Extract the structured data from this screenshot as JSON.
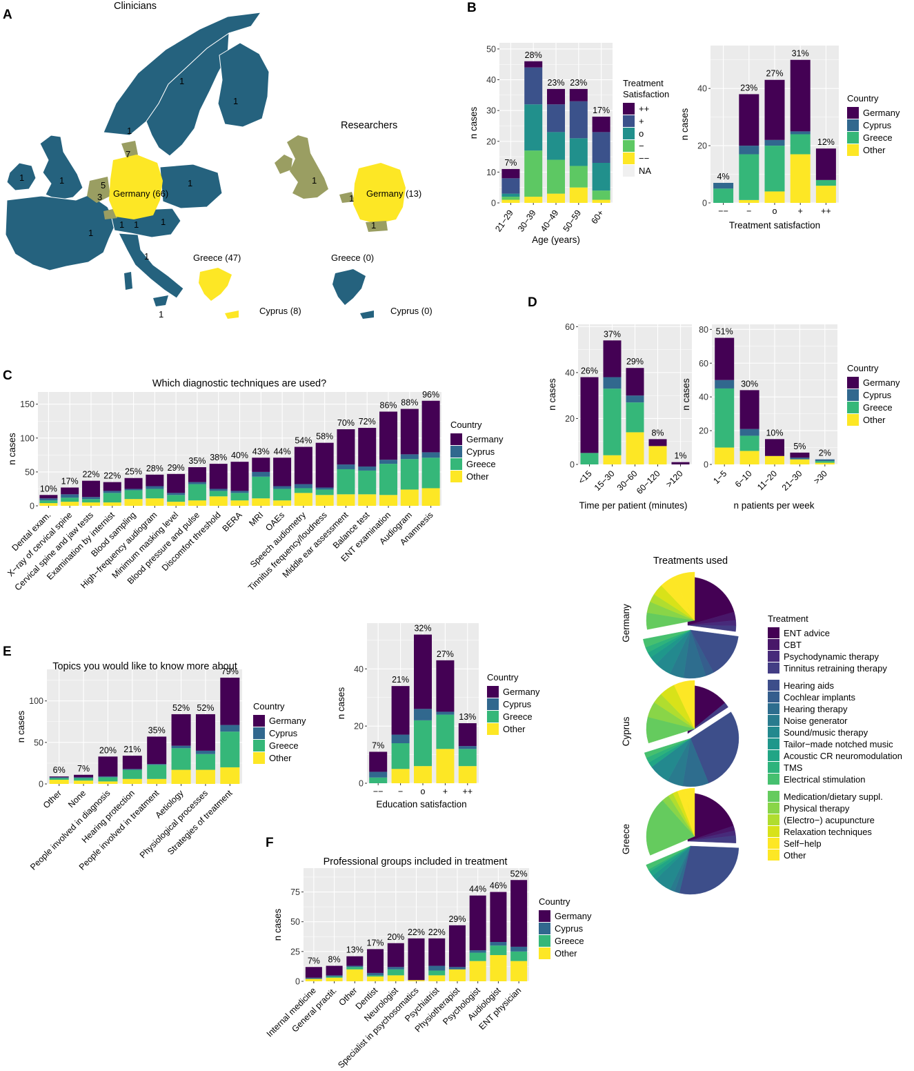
{
  "colors": {
    "Germany": "#440154",
    "Cyprus": "#31688e",
    "Greece": "#35b779",
    "Other": "#fde725",
    "panel": "#ebebeb",
    "grid": "#ffffff",
    "sat_pp": "#440154",
    "sat_p": "#3b528b",
    "sat_o": "#21908c",
    "sat_m": "#5dc863",
    "sat_mm": "#fde725",
    "sat_na": "#f0f0f0",
    "map_blue": "#25627e",
    "map_yellow": "#fde725",
    "map_olive": "#9a9e62"
  },
  "panel_labels": [
    "A",
    "B",
    "C",
    "D",
    "E",
    "F"
  ],
  "map": {
    "clinicians_title": "Clinicians",
    "researchers_title": "Researchers",
    "clin_labels": [
      "1",
      "1",
      "1",
      "1",
      "1",
      "1",
      "1",
      "7",
      "5",
      "3",
      "Germany (66)",
      "1",
      "1",
      "1",
      "1",
      "1",
      "1",
      "Greece (47)",
      "Cyprus (8)",
      "1"
    ],
    "res_labels": [
      "1",
      "1",
      "Germany (13)",
      "1",
      "Greece (0)",
      "Cyprus (0)"
    ]
  },
  "chart_data": [
    {
      "id": "B1",
      "type": "bar",
      "stacked": true,
      "title": "",
      "xlabel": "Age (years)",
      "ylabel": "n cases",
      "categories": [
        "21−29",
        "30−39",
        "40−49",
        "50−59",
        "60+"
      ],
      "yticks": [
        "0",
        "10",
        "20",
        "30",
        "40",
        "50"
      ],
      "ylim": [
        0,
        52
      ],
      "pct_labels": [
        "7%",
        "28%",
        "23%",
        "23%",
        "17%"
      ],
      "series": [
        {
          "name": "−−",
          "color": "sat_mm",
          "values": [
            1,
            2,
            3,
            5,
            1
          ]
        },
        {
          "name": "−",
          "color": "sat_m",
          "values": [
            1,
            15,
            11,
            7,
            3
          ]
        },
        {
          "name": "o",
          "color": "sat_o",
          "values": [
            1,
            15,
            9,
            9,
            9
          ]
        },
        {
          "name": "+",
          "color": "sat_p",
          "values": [
            5,
            12,
            9,
            12,
            10
          ]
        },
        {
          "name": "++",
          "color": "sat_pp",
          "values": [
            3,
            2,
            5,
            4,
            5
          ]
        }
      ],
      "legend": {
        "title": [
          "Treatment",
          "Satisfaction"
        ],
        "entries": [
          "++",
          "+",
          "o",
          "−",
          "−−",
          "NA"
        ],
        "colors": [
          "sat_pp",
          "sat_p",
          "sat_o",
          "sat_m",
          "sat_mm",
          "sat_na"
        ],
        "position": "right"
      }
    },
    {
      "id": "B2",
      "type": "bar",
      "stacked": true,
      "title": "",
      "xlabel": "Treatment satisfaction",
      "ylabel": "n cases",
      "categories": [
        "−−",
        "−",
        "o",
        "+",
        "++"
      ],
      "yticks": [
        "0",
        "20",
        "40"
      ],
      "ylim": [
        0,
        55
      ],
      "pct_labels": [
        "4%",
        "23%",
        "27%",
        "31%",
        "12%"
      ],
      "series": [
        {
          "name": "Other",
          "color": "Other",
          "values": [
            0,
            1,
            4,
            17,
            6
          ]
        },
        {
          "name": "Greece",
          "color": "Greece",
          "values": [
            5,
            16,
            16,
            7,
            2
          ]
        },
        {
          "name": "Cyprus",
          "color": "Cyprus",
          "values": [
            2,
            3,
            2,
            1,
            0
          ]
        },
        {
          "name": "Germany",
          "color": "Germany",
          "values": [
            0,
            18,
            21,
            25,
            11
          ]
        }
      ],
      "legend": {
        "title": [
          "Country"
        ],
        "entries": [
          "Germany",
          "Cyprus",
          "Greece",
          "Other"
        ],
        "colors": [
          "Germany",
          "Cyprus",
          "Greece",
          "Other"
        ],
        "position": "right"
      }
    },
    {
      "id": "C",
      "type": "bar",
      "stacked": true,
      "title": "Which diagnostic techniques are used?",
      "xlabel": "",
      "ylabel": "n cases",
      "categories": [
        "Dental exam.",
        "X−ray of cervical spine",
        "Cervical spine and jaw tests",
        "Examination by internist",
        "Blood sampling",
        "High−frequency audiogram",
        "Minimum masking level",
        "Blood pressure and pulse",
        "Discomfort threshold",
        "BERA",
        "MRI",
        "OAEs",
        "Speech audiometry",
        "Tinnitus frequency/loudness",
        "Middle ear assessment",
        "Balance test",
        "ENT examination",
        "Audiogram",
        "Anamnesis"
      ],
      "yticks": [
        "0",
        "50",
        "100",
        "150"
      ],
      "ylim": [
        0,
        168
      ],
      "pct_labels": [
        "10%",
        "17%",
        "22%",
        "22%",
        "25%",
        "28%",
        "29%",
        "35%",
        "38%",
        "40%",
        "43%",
        "44%",
        "54%",
        "58%",
        "70%",
        "72%",
        "86%",
        "88%",
        "96%"
      ],
      "series": [
        {
          "name": "Other",
          "color": "Other",
          "values": [
            4,
            6,
            5,
            5,
            10,
            11,
            6,
            8,
            14,
            8,
            11,
            8,
            19,
            16,
            17,
            17,
            16,
            24,
            26
          ]
        },
        {
          "name": "Greece",
          "color": "Greece",
          "values": [
            4,
            6,
            5,
            14,
            13,
            14,
            10,
            24,
            8,
            11,
            32,
            17,
            7,
            8,
            37,
            35,
            46,
            45,
            45
          ]
        },
        {
          "name": "Cyprus",
          "color": "Cyprus",
          "values": [
            3,
            5,
            3,
            3,
            2,
            4,
            3,
            3,
            3,
            3,
            7,
            4,
            6,
            3,
            7,
            6,
            6,
            7,
            8
          ]
        },
        {
          "name": "Germany",
          "color": "Germany",
          "values": [
            5,
            10,
            24,
            13,
            16,
            17,
            28,
            22,
            37,
            43,
            21,
            42,
            55,
            66,
            52,
            57,
            71,
            67,
            76
          ]
        }
      ],
      "legend": {
        "title": [
          "Country"
        ],
        "entries": [
          "Germany",
          "Cyprus",
          "Greece",
          "Other"
        ],
        "colors": [
          "Germany",
          "Cyprus",
          "Greece",
          "Other"
        ],
        "position": "right"
      }
    },
    {
      "id": "D1",
      "type": "bar",
      "stacked": true,
      "title": "",
      "xlabel": "Time per patient (minutes)",
      "ylabel": "n cases",
      "categories": [
        "<15",
        "15−30",
        "30−60",
        "60−120",
        ">120"
      ],
      "yticks": [
        "0",
        "20",
        "40",
        "60"
      ],
      "ylim": [
        0,
        61
      ],
      "pct_labels": [
        "26%",
        "37%",
        "29%",
        "8%",
        "1%"
      ],
      "series": [
        {
          "name": "Other",
          "color": "Other",
          "values": [
            0,
            4,
            14,
            8,
            0
          ]
        },
        {
          "name": "Greece",
          "color": "Greece",
          "values": [
            5,
            29,
            13,
            0,
            0
          ]
        },
        {
          "name": "Cyprus",
          "color": "Cyprus",
          "values": [
            0,
            5,
            3,
            0,
            0
          ]
        },
        {
          "name": "Germany",
          "color": "Germany",
          "values": [
            33,
            16,
            12,
            3,
            1
          ]
        }
      ],
      "legend": null
    },
    {
      "id": "D2",
      "type": "bar",
      "stacked": true,
      "title": "",
      "xlabel": "n patients per week",
      "ylabel": "n cases",
      "categories": [
        "1−5",
        "6−10",
        "11−20",
        "21−30",
        ">30"
      ],
      "yticks": [
        "0",
        "20",
        "40",
        "60",
        "80"
      ],
      "ylim": [
        0,
        83
      ],
      "pct_labels": [
        "51%",
        "30%",
        "10%",
        "5%",
        "2%"
      ],
      "series": [
        {
          "name": "Other",
          "color": "Other",
          "values": [
            10,
            8,
            5,
            3,
            1
          ]
        },
        {
          "name": "Greece",
          "color": "Greece",
          "values": [
            35,
            9,
            0,
            0,
            1
          ]
        },
        {
          "name": "Cyprus",
          "color": "Cyprus",
          "values": [
            5,
            4,
            0,
            1,
            1
          ]
        },
        {
          "name": "Germany",
          "color": "Germany",
          "values": [
            25,
            23,
            10,
            3,
            0
          ]
        }
      ],
      "legend": {
        "title": [
          "Country"
        ],
        "entries": [
          "Germany",
          "Cyprus",
          "Greece",
          "Other"
        ],
        "colors": [
          "Germany",
          "Cyprus",
          "Greece",
          "Other"
        ],
        "position": "right"
      }
    },
    {
      "id": "E1",
      "type": "bar",
      "stacked": true,
      "title": "Topics you would like to know more about",
      "xlabel": "",
      "ylabel": "n cases",
      "categories": [
        "Other",
        "None",
        "People involved in diagnosis",
        "Hearing protection",
        "People involved in treatment",
        "Aetiology",
        "Physiological processes",
        "Strategies of treatment"
      ],
      "yticks": [
        "0",
        "50",
        "100"
      ],
      "ylim": [
        0,
        138
      ],
      "pct_labels": [
        "6%",
        "7%",
        "20%",
        "21%",
        "35%",
        "52%",
        "52%",
        "79%"
      ],
      "series": [
        {
          "name": "Other",
          "color": "Other",
          "values": [
            5,
            4,
            3,
            6,
            6,
            17,
            17,
            20
          ]
        },
        {
          "name": "Greece",
          "color": "Greece",
          "values": [
            2,
            3,
            5,
            11,
            17,
            26,
            19,
            43
          ]
        },
        {
          "name": "Cyprus",
          "color": "Cyprus",
          "values": [
            1,
            1,
            1,
            1,
            1,
            3,
            4,
            8
          ]
        },
        {
          "name": "Germany",
          "color": "Germany",
          "values": [
            1,
            3,
            24,
            16,
            33,
            38,
            44,
            57
          ]
        }
      ],
      "legend": {
        "title": [
          "Country"
        ],
        "entries": [
          "Germany",
          "Cyprus",
          "Greece",
          "Other"
        ],
        "colors": [
          "Germany",
          "Cyprus",
          "Greece",
          "Other"
        ],
        "position": "right"
      }
    },
    {
      "id": "E2",
      "type": "bar",
      "stacked": true,
      "title": "",
      "xlabel": "Education satisfaction",
      "ylabel": "n cases",
      "categories": [
        "−−",
        "−",
        "o",
        "+",
        "++"
      ],
      "yticks": [
        "0",
        "20",
        "40"
      ],
      "ylim": [
        0,
        56
      ],
      "pct_labels": [
        "7%",
        "21%",
        "32%",
        "27%",
        "13%"
      ],
      "series": [
        {
          "name": "Other",
          "color": "Other",
          "values": [
            0,
            5,
            6,
            12,
            6
          ]
        },
        {
          "name": "Greece",
          "color": "Greece",
          "values": [
            2,
            9,
            16,
            12,
            6
          ]
        },
        {
          "name": "Cyprus",
          "color": "Cyprus",
          "values": [
            2,
            3,
            4,
            1,
            1
          ]
        },
        {
          "name": "Germany",
          "color": "Germany",
          "values": [
            7,
            17,
            26,
            18,
            8
          ]
        }
      ],
      "legend": {
        "title": [
          "Country"
        ],
        "entries": [
          "Germany",
          "Cyprus",
          "Greece",
          "Other"
        ],
        "colors": [
          "Germany",
          "Cyprus",
          "Greece",
          "Other"
        ],
        "position": "right"
      }
    },
    {
      "id": "F",
      "type": "bar",
      "stacked": true,
      "title": "Professional groups included in treatment",
      "xlabel": "",
      "ylabel": "n cases",
      "categories": [
        "Internal medicine",
        "General practit.",
        "Other",
        "Dentist",
        "Neurologist",
        "Specialist in psychosomatics",
        "Psychiatrist",
        "Physiotherapist",
        "Psychologist",
        "Audiologist",
        "ENT physician"
      ],
      "yticks": [
        "0",
        "25",
        "50",
        "75"
      ],
      "ylim": [
        0,
        95
      ],
      "pct_labels": [
        "7%",
        "8%",
        "13%",
        "17%",
        "20%",
        "22%",
        "22%",
        "29%",
        "44%",
        "46%",
        "52%"
      ],
      "series": [
        {
          "name": "Other",
          "color": "Other",
          "values": [
            2,
            3,
            10,
            4,
            5,
            1,
            5,
            10,
            17,
            22,
            17
          ]
        },
        {
          "name": "Greece",
          "color": "Greece",
          "values": [
            0,
            1,
            2,
            1,
            5,
            0,
            4,
            0,
            7,
            8,
            8
          ]
        },
        {
          "name": "Cyprus",
          "color": "Cyprus",
          "values": [
            1,
            1,
            1,
            2,
            2,
            0,
            4,
            2,
            2,
            3,
            4
          ]
        },
        {
          "name": "Germany",
          "color": "Germany",
          "values": [
            9,
            8,
            8,
            20,
            20,
            35,
            23,
            35,
            46,
            42,
            56
          ]
        }
      ],
      "legend": {
        "title": [
          "Country"
        ],
        "entries": [
          "Germany",
          "Cyprus",
          "Greece",
          "Other"
        ],
        "colors": [
          "Germany",
          "Cyprus",
          "Greece",
          "Other"
        ],
        "position": "right"
      }
    },
    {
      "id": "pies",
      "type": "pie",
      "title": "Treatments used",
      "treatments": [
        "ENT advice",
        "CBT",
        "Psychodynamic therapy",
        "Tinnitus retraining therapy",
        "Hearing aids",
        "Cochlear implants",
        "Hearing therapy",
        "Noise generator",
        "Sound/music therapy",
        "Tailor−made notched music",
        "Acoustic CR neuromodulation",
        "TMS",
        "Electrical stimulation",
        "Medication/dietary suppl.",
        "Physical therapy",
        "(Electro−) acupuncture",
        "Relaxation techniques",
        "Self−help",
        "Other"
      ],
      "treatment_colors": [
        "#440154",
        "#481769",
        "#472a7a",
        "#433d84",
        "#3d4e8a",
        "#355e8d",
        "#2e6d8e",
        "#297b8e",
        "#23898e",
        "#1f978b",
        "#21a585",
        "#2eb37c",
        "#46c06f",
        "#65cb5e",
        "#89d548",
        "#b0dd2f",
        "#d8e219",
        "#fde725",
        "#fde725"
      ],
      "groups": [
        [
          0,
          1,
          2,
          3
        ],
        [
          4,
          5,
          6,
          7,
          8,
          9,
          10,
          11,
          12
        ],
        [
          13,
          14,
          15,
          16,
          17,
          18
        ]
      ],
      "countries": [
        "Germany",
        "Cyprus",
        "Greece"
      ],
      "values": {
        "Germany": [
          22,
          3,
          2,
          2,
          16,
          3,
          8,
          5,
          6,
          3,
          2,
          2,
          3,
          6,
          4,
          3,
          4,
          5,
          8
        ],
        "Cyprus": [
          8,
          0,
          0,
          1,
          16,
          0,
          5,
          3,
          4,
          0,
          1,
          1,
          1,
          5,
          3,
          2,
          3,
          0,
          4
        ],
        "Greece": [
          24,
          2,
          2,
          3,
          34,
          0,
          2,
          2,
          7,
          2,
          2,
          1,
          2,
          24,
          3,
          2,
          2,
          3,
          4
        ]
      },
      "legend": {
        "title": "Treatment",
        "position": "right"
      }
    }
  ]
}
